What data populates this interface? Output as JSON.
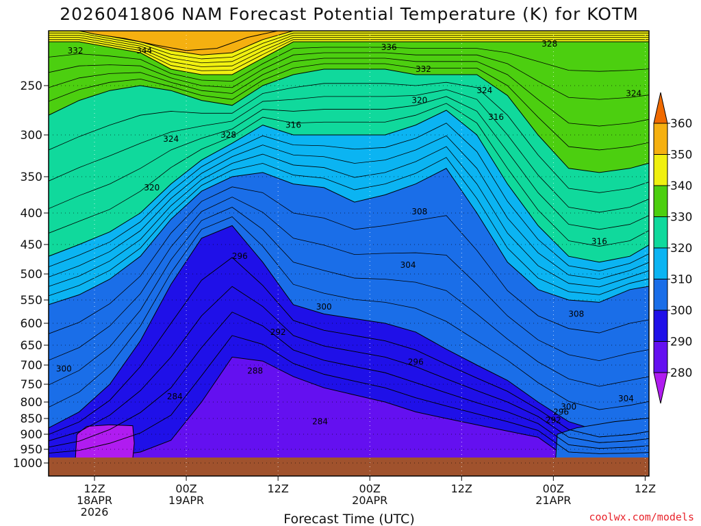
{
  "chart_data": {
    "type": "heatmap",
    "title": "2026041806 NAM Forecast Potential Temperature (K) for KOTM",
    "xlabel": "Forecast Time (UTC)",
    "ylabel": "",
    "credit": "coolwx.com/models",
    "y_axis": {
      "scale": "pressure (hPa), inverted",
      "ticks": [
        250,
        300,
        350,
        400,
        450,
        500,
        550,
        600,
        650,
        700,
        750,
        800,
        850,
        900,
        950,
        1000
      ]
    },
    "x_axis": {
      "unit": "forecast hour",
      "range": [
        6,
        84
      ],
      "ticks": [
        {
          "hour": 12,
          "label": [
            "12Z",
            "18APR",
            "2026"
          ]
        },
        {
          "hour": 24,
          "label": [
            "00Z",
            "19APR"
          ]
        },
        {
          "hour": 36,
          "label": [
            "12Z"
          ]
        },
        {
          "hour": 48,
          "label": [
            "00Z",
            "20APR"
          ]
        },
        {
          "hour": 60,
          "label": [
            "12Z"
          ]
        },
        {
          "hour": 72,
          "label": [
            "00Z",
            "21APR"
          ]
        },
        {
          "hour": 84,
          "label": [
            "12Z"
          ]
        }
      ]
    },
    "colorbar": {
      "levels": [
        280,
        290,
        300,
        310,
        320,
        330,
        340,
        350,
        360
      ],
      "colors": [
        "#b01cf0",
        "#6410f0",
        "#1f10e8",
        "#1a6ee8",
        "#0bb4f2",
        "#10d99c",
        "#4ccf10",
        "#f0f010",
        "#f5b010",
        "#f06a00"
      ],
      "extend": "both"
    },
    "contour_labels": [
      {
        "value": "332",
        "hour": 9.5,
        "p": 218
      },
      {
        "value": "344",
        "hour": 18.5,
        "p": 218
      },
      {
        "value": "336",
        "hour": 50.5,
        "p": 215
      },
      {
        "value": "328",
        "hour": 71.5,
        "p": 212
      },
      {
        "value": "332",
        "hour": 55,
        "p": 235
      },
      {
        "value": "324",
        "hour": 63,
        "p": 255
      },
      {
        "value": "320",
        "hour": 54.5,
        "p": 265
      },
      {
        "value": "316",
        "hour": 64.5,
        "p": 282
      },
      {
        "value": "324",
        "hour": 82.5,
        "p": 258
      },
      {
        "value": "316",
        "hour": 38,
        "p": 290
      },
      {
        "value": "328",
        "hour": 29.5,
        "p": 300
      },
      {
        "value": "324",
        "hour": 22,
        "p": 305
      },
      {
        "value": "320",
        "hour": 19.5,
        "p": 365
      },
      {
        "value": "308",
        "hour": 54.5,
        "p": 398
      },
      {
        "value": "316",
        "hour": 78,
        "p": 445
      },
      {
        "value": "296",
        "hour": 31,
        "p": 470
      },
      {
        "value": "304",
        "hour": 53,
        "p": 485
      },
      {
        "value": "300",
        "hour": 42,
        "p": 565
      },
      {
        "value": "308",
        "hour": 75,
        "p": 580
      },
      {
        "value": "292",
        "hour": 36,
        "p": 620
      },
      {
        "value": "296",
        "hour": 54,
        "p": 692
      },
      {
        "value": "300",
        "hour": 8,
        "p": 710
      },
      {
        "value": "288",
        "hour": 33,
        "p": 715
      },
      {
        "value": "284",
        "hour": 22.5,
        "p": 785
      },
      {
        "value": "304",
        "hour": 81.5,
        "p": 790
      },
      {
        "value": "300",
        "hour": 74,
        "p": 815
      },
      {
        "value": "296",
        "hour": 73,
        "p": 830
      },
      {
        "value": "292",
        "hour": 72,
        "p": 855
      },
      {
        "value": "284",
        "hour": 41.5,
        "p": 860
      }
    ],
    "isotherm_boundaries_hPa": {
      "note": "approximate pressure (hPa) of each filled-color boundary at sampled forecast hours",
      "hours": [
        6,
        10,
        14,
        18,
        22,
        26,
        30,
        34,
        38,
        42,
        46,
        50,
        54,
        58,
        62,
        66,
        70,
        74,
        78,
        82,
        86
      ],
      "levels": [
        {
          "theta": 290,
          "p": [
            985,
            985,
            975,
            960,
            920,
            800,
            680,
            690,
            730,
            760,
            780,
            800,
            830,
            850,
            870,
            890,
            910,
            985,
            985,
            985,
            985
          ]
        },
        {
          "theta": 300,
          "p": [
            880,
            830,
            750,
            640,
            520,
            440,
            420,
            480,
            560,
            580,
            590,
            600,
            620,
            660,
            700,
            740,
            800,
            860,
            890,
            880,
            860
          ]
        },
        {
          "theta": 310,
          "p": [
            560,
            540,
            510,
            470,
            410,
            370,
            350,
            345,
            360,
            365,
            385,
            375,
            360,
            340,
            400,
            480,
            530,
            550,
            555,
            530,
            520
          ]
        },
        {
          "theta": 320,
          "p": [
            470,
            450,
            430,
            400,
            360,
            330,
            310,
            290,
            300,
            300,
            300,
            300,
            290,
            275,
            300,
            360,
            420,
            470,
            480,
            470,
            440
          ]
        },
        {
          "theta": 330,
          "p": [
            280,
            265,
            255,
            250,
            255,
            265,
            270,
            250,
            240,
            235,
            235,
            235,
            240,
            240,
            240,
            260,
            300,
            340,
            345,
            340,
            330
          ]
        },
        {
          "theta": 340,
          "p": [
            210,
            210,
            215,
            220,
            235,
            240,
            240,
            225,
            210,
            210,
            210,
            210,
            210,
            210,
            210,
            210,
            210,
            210,
            210,
            210,
            210
          ]
        },
        {
          "theta": 350,
          "p": [
            200,
            200,
            205,
            210,
            218,
            222,
            220,
            208,
            200,
            200,
            200,
            200,
            200,
            200,
            200,
            200,
            200,
            200,
            200,
            200,
            200
          ]
        }
      ]
    }
  }
}
